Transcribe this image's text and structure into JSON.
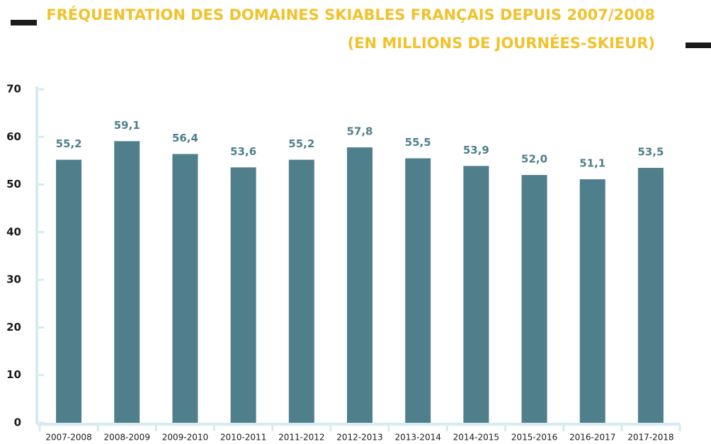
{
  "chart_data": {
    "type": "bar",
    "title": "FRÉQUENTATION DES DOMAINES SKIABLES FRANÇAIS DEPUIS 2007/2008",
    "subtitle": "(EN MILLIONS DE JOURNÉES-SKIEUR)",
    "categories": [
      "2007-2008",
      "2008-2009",
      "2009-2010",
      "2010-2011",
      "2011-2012",
      "2012-2013",
      "2013-2014",
      "2014-2015",
      "2015-2016",
      "2016-2017",
      "2017-2018"
    ],
    "values": [
      55.2,
      59.1,
      56.4,
      53.6,
      55.2,
      57.8,
      55.5,
      53.9,
      52.0,
      51.1,
      53.5
    ],
    "value_labels": [
      "55,2",
      "59,1",
      "56,4",
      "53,6",
      "55,2",
      "57,8",
      "55,5",
      "53,9",
      "52,0",
      "51,1",
      "53,5"
    ],
    "color": "#4f7f8b",
    "ylim": [
      0,
      70
    ],
    "yticks": [
      0,
      10,
      20,
      30,
      40,
      50,
      60,
      70
    ],
    "grid": false
  }
}
